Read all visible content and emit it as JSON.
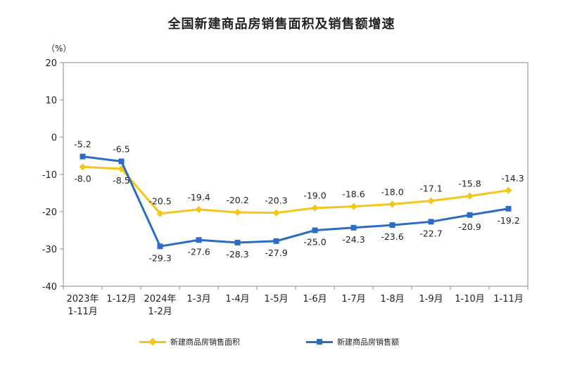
{
  "chart_data": {
    "type": "line",
    "title": "全国新建商品房销售面积及销售额增速",
    "unit_label": "（%）",
    "categories": [
      [
        "2023年",
        "1-11月"
      ],
      [
        "1-12月"
      ],
      [
        "2024年",
        "1-2月"
      ],
      [
        "1-3月"
      ],
      [
        "1-4月"
      ],
      [
        "1-5月"
      ],
      [
        "1-6月"
      ],
      [
        "1-7月"
      ],
      [
        "1-8月"
      ],
      [
        "1-9月"
      ],
      [
        "1-10月"
      ],
      [
        "1-11月"
      ]
    ],
    "ylim": [
      -40,
      20
    ],
    "yticks": [
      "20",
      "10",
      "0",
      "-10",
      "-20",
      "-30",
      "-40"
    ],
    "series": [
      {
        "name": "新建商品房销售面积",
        "color": "#F5C518",
        "marker": "diamond",
        "values": [
          -8.0,
          -8.5,
          -20.5,
          -19.4,
          -20.2,
          -20.3,
          -19.0,
          -18.6,
          -18.0,
          -17.1,
          -15.8,
          -14.3
        ],
        "labels": [
          "-8.0",
          "-8.5",
          "-20.5",
          "-19.4",
          "-20.2",
          "-20.3",
          "-19.0",
          "-18.6",
          "-18.0",
          "-17.1",
          "-15.8",
          "-14.3"
        ]
      },
      {
        "name": "新建商品房销售额",
        "color": "#2B6CC4",
        "marker": "square",
        "values": [
          -5.2,
          -6.5,
          -29.3,
          -27.6,
          -28.3,
          -27.9,
          -25.0,
          -24.3,
          -23.6,
          -22.7,
          -20.9,
          -19.2
        ],
        "labels": [
          "-5.2",
          "-6.5",
          "-29.3",
          "-27.6",
          "-28.3",
          "-27.9",
          "-25.0",
          "-24.3",
          "-23.6",
          "-22.7",
          "-20.9",
          "-19.2"
        ]
      }
    ],
    "grid": false,
    "legend_position": "bottom"
  }
}
